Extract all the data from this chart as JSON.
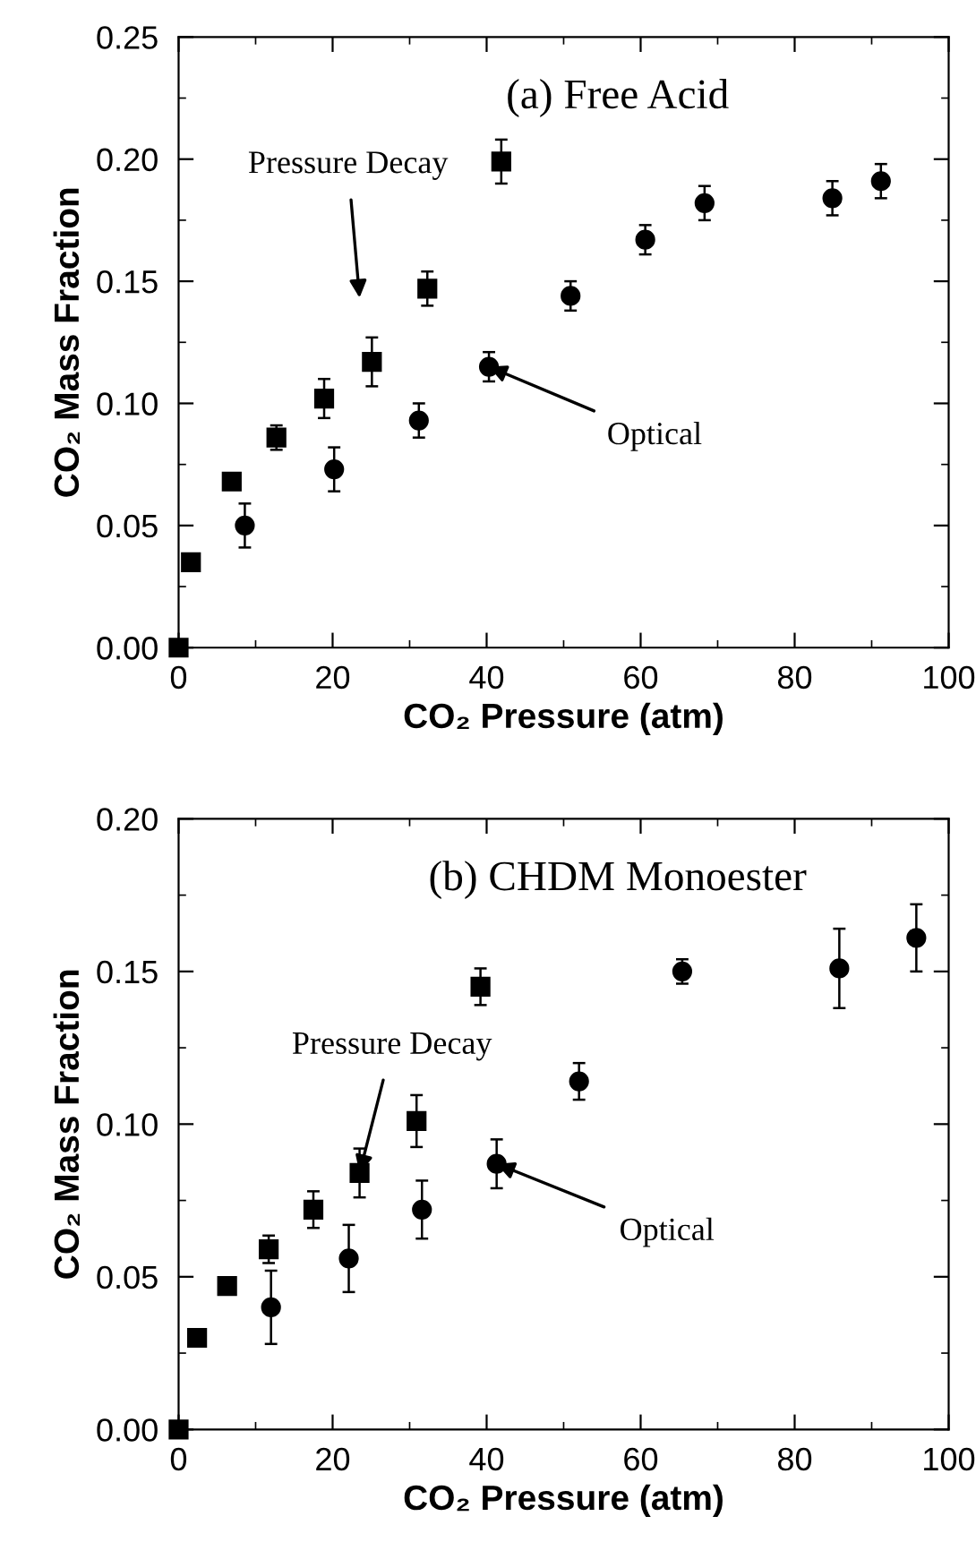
{
  "chart_data": [
    {
      "type": "scatter",
      "title": "(a) Free Acid",
      "xlabel": "CO₂ Pressure (atm)",
      "ylabel": "CO₂ Mass Fraction",
      "xlim": [
        0,
        100
      ],
      "xticks": [
        0,
        20,
        40,
        60,
        80,
        100
      ],
      "ylim": [
        0,
        0.25
      ],
      "yticks": [
        {
          "value": 0,
          "label": "0.00"
        },
        0.05,
        {
          "value": 0.1,
          "label": "0.10"
        },
        0.15,
        {
          "value": 0.2,
          "label": "0.20"
        },
        0.25
      ],
      "grid": false,
      "series": [
        {
          "color": "#000000",
          "marker": "square",
          "x": [
            0,
            1.6,
            6.9,
            12.7,
            18.9,
            25.1,
            32.3,
            41.9
          ],
          "values": [
            0,
            0.035,
            0.068,
            0.086,
            0.102,
            0.117,
            0.147,
            0.199
          ],
          "errors": [
            null,
            null,
            null,
            0.005,
            0.008,
            0.01,
            0.007,
            0.009
          ]
        },
        {
          "color": "#000000",
          "marker": "circle",
          "x": [
            8.6,
            20.2,
            31.2,
            40.3,
            50.9,
            60.6,
            68.3,
            84.9,
            91.2
          ],
          "values": [
            0.05,
            0.073,
            0.093,
            0.115,
            0.144,
            0.167,
            0.182,
            0.184,
            0.191
          ],
          "errors": [
            0.009,
            0.009,
            0.007,
            0.006,
            0.006,
            0.006,
            0.007,
            0.007,
            0.007
          ]
        }
      ],
      "annotations": [
        "Pressure Decay",
        {
          "text": "Optical",
          "x": 40.3,
          "y": 0.115
        }
      ]
    },
    {
      "type": "scatter",
      "title": "(b) CHDM Monoester",
      "xlabel": "CO₂ Pressure (atm)",
      "ylabel": "CO₂ Mass Fraction",
      "xlim": [
        0,
        100
      ],
      "xticks": [
        0,
        20,
        40,
        60,
        80,
        100
      ],
      "ylim": [
        0,
        0.2
      ],
      "yticks": [
        {
          "value": 0,
          "label": "0.00"
        },
        0.05,
        {
          "value": 0.1,
          "label": "0.10"
        },
        0.15,
        {
          "value": 0.2,
          "label": "0.20"
        }
      ],
      "grid": false,
      "series": [
        {
          "color": "#000000",
          "marker": "square",
          "x": [
            0,
            2.4,
            6.3,
            11.7,
            17.5,
            23.5,
            30.9,
            39.2
          ],
          "values": [
            0,
            0.03,
            0.047,
            0.059,
            0.072,
            0.084,
            0.101,
            0.145
          ],
          "errors": [
            null,
            null,
            null,
            0.0045,
            0.006,
            0.008,
            0.0085,
            0.006
          ]
        },
        {
          "color": "#000000",
          "marker": "circle",
          "x": [
            12.0,
            22.1,
            31.6,
            41.3,
            52.0,
            65.4,
            85.8,
            95.8
          ],
          "values": [
            0.04,
            0.056,
            0.072,
            0.087,
            0.114,
            0.15,
            0.151,
            0.161
          ],
          "errors": [
            0.012,
            0.011,
            0.0095,
            0.008,
            0.006,
            0.004,
            0.013,
            0.011
          ]
        }
      ],
      "annotations": [
        {
          "text": "Pressure Decay",
          "x": 23.5,
          "y": 0.084
        },
        {
          "text": "Optical",
          "x": 41.3,
          "y": 0.087
        }
      ]
    }
  ]
}
